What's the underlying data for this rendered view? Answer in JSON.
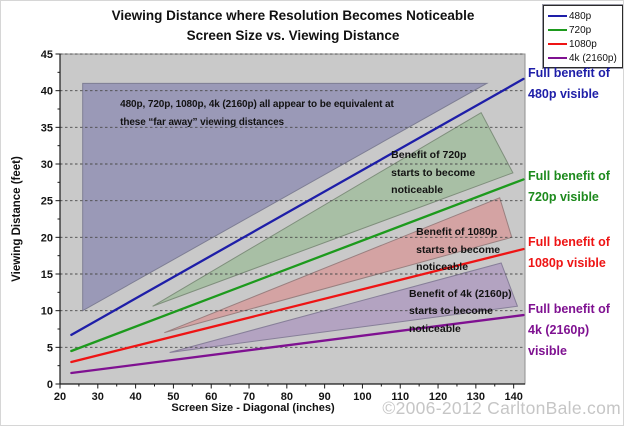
{
  "page": {
    "watermark": "©2006-2012 CarltonBale.com",
    "watermark_color": "#c6c6c6"
  },
  "legend": {
    "items": [
      {
        "label": "480p",
        "color": "#1e1ea8"
      },
      {
        "label": "720p",
        "color": "#1d9a1d"
      },
      {
        "label": "1080p",
        "color": "#ee1414"
      },
      {
        "label": "4k (2160p)",
        "color": "#7f1191"
      }
    ]
  },
  "chart_data": {
    "type": "line",
    "title": "Viewing Distance where Resolution Becomes Noticeable",
    "subtitle": "Screen Size vs. Viewing Distance",
    "xlabel": "Screen Size - Diagonal (inches)",
    "ylabel": "Viewing Distance (feet)",
    "xlim": [
      20,
      143
    ],
    "ylim": [
      0,
      45
    ],
    "x_ticks": [
      20,
      30,
      40,
      50,
      60,
      70,
      80,
      90,
      100,
      110,
      120,
      130,
      140
    ],
    "y_ticks": [
      0,
      5,
      10,
      15,
      20,
      25,
      30,
      35,
      40,
      45
    ],
    "x_minor_step": 5,
    "y_minor_step": 2.5,
    "grid": "horizontal-dashed",
    "grid_color": "#4a4a4a",
    "plot_bg": "#c9c9c9",
    "legend_position": "top-right",
    "series": [
      {
        "name": "480p",
        "color": "#1e1ea8",
        "points": [
          [
            23,
            6.7
          ],
          [
            142.6,
            41.6
          ]
        ]
      },
      {
        "name": "720p",
        "color": "#1d9a1d",
        "points": [
          [
            23,
            4.5
          ],
          [
            142.6,
            27.9
          ]
        ]
      },
      {
        "name": "1080p",
        "color": "#ee1414",
        "points": [
          [
            23,
            3.0
          ],
          [
            142.6,
            18.4
          ]
        ]
      },
      {
        "name": "4k (2160p)",
        "color": "#7f1191",
        "points": [
          [
            23,
            1.5
          ],
          [
            142.6,
            9.4
          ]
        ]
      }
    ],
    "regions": [
      {
        "name": "region-all-equivalent",
        "fill": "#9a99b7",
        "stroke": "#7e7e94",
        "points": [
          [
            26,
            10
          ],
          [
            26,
            41
          ],
          [
            132.9,
            41
          ]
        ]
      },
      {
        "name": "region-benefit-720p",
        "fill": "#a8bfa5",
        "stroke": "#7f8f7c",
        "points": [
          [
            44.5,
            10.6
          ],
          [
            131.4,
            37.0
          ],
          [
            139.8,
            28.8
          ]
        ]
      },
      {
        "name": "region-benefit-1080p",
        "fill": "#d4a3a3",
        "stroke": "#9a8080",
        "points": [
          [
            47.6,
            7.0
          ],
          [
            136.3,
            25.4
          ],
          [
            139.5,
            20.0
          ]
        ]
      },
      {
        "name": "region-benefit-4k",
        "fill": "#b3a3c1",
        "stroke": "#877f99",
        "points": [
          [
            49,
            4.3
          ],
          [
            136.7,
            16.5
          ],
          [
            141,
            10.6
          ]
        ]
      }
    ],
    "annotations": [
      {
        "name": "note-equivalence",
        "x": 35.9,
        "y": 39.3,
        "small": true,
        "lines": [
          "480p, 720p, 1080p, 4k (2160p) all appear to be equivalent at",
          "these “far away” viewing distances"
        ]
      },
      {
        "name": "note-benefit-720p",
        "x": 107.6,
        "y": 32.3,
        "lines": [
          "Benefit of 720p",
          "starts to become",
          "noticeable"
        ]
      },
      {
        "name": "note-benefit-1080p",
        "x": 114.2,
        "y": 21.8,
        "lines": [
          "Benefit of 1080p",
          "starts to become",
          "noticeable"
        ]
      },
      {
        "name": "note-benefit-4k",
        "x": 112.3,
        "y": 13.4,
        "lines": [
          "Benefit of 4k (2160p)",
          "starts to become",
          "noticeable"
        ]
      }
    ],
    "side_labels": [
      {
        "name": "full-benefit-480p",
        "color": "#1e1ea8",
        "y": 43.8,
        "lines": [
          "Full benefit of",
          "480p visible"
        ]
      },
      {
        "name": "full-benefit-720p",
        "color": "#1d8a1d",
        "y": 29.7,
        "lines": [
          "Full benefit of",
          "720p visible"
        ]
      },
      {
        "name": "full-benefit-1080p",
        "color": "#ee1414",
        "y": 20.7,
        "lines": [
          "Full benefit of",
          "1080p visible"
        ]
      },
      {
        "name": "full-benefit-4k",
        "color": "#7f1191",
        "y": 11.6,
        "lines": [
          "Full benefit of",
          "4k (2160p)",
          "visible"
        ]
      }
    ]
  }
}
